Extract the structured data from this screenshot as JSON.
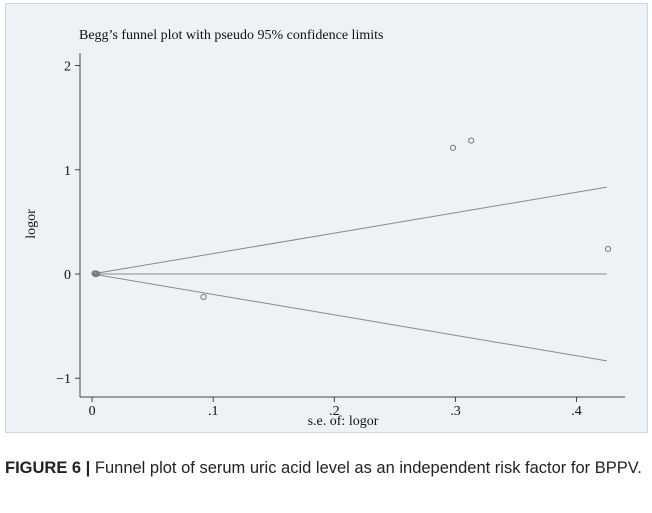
{
  "chart_data": {
    "type": "scatter",
    "title": "Begg’s funnel plot with pseudo 95% confidence limits",
    "xlabel": "s.e. of: logor",
    "ylabel": "logor",
    "xlim": [
      -0.01,
      0.44
    ],
    "ylim": [
      -1.18,
      2.12
    ],
    "x_ticks": [
      {
        "value": 0,
        "label": "0"
      },
      {
        "value": 0.1,
        "label": ".1"
      },
      {
        "value": 0.2,
        "label": ".2"
      },
      {
        "value": 0.3,
        "label": ".3"
      },
      {
        "value": 0.4,
        "label": ".4"
      }
    ],
    "y_ticks": [
      {
        "value": 2,
        "label": "2"
      },
      {
        "value": 1,
        "label": "1"
      },
      {
        "value": 0,
        "label": "0"
      },
      {
        "value": -1,
        "label": "−1"
      }
    ],
    "points": [
      {
        "x": 0.002,
        "y": 0.005
      },
      {
        "x": 0.003,
        "y": 0.002
      },
      {
        "x": 0.004,
        "y": 0.003
      },
      {
        "x": 0.003,
        "y": -0.002
      },
      {
        "x": 0.092,
        "y": -0.22
      },
      {
        "x": 0.298,
        "y": 1.21
      },
      {
        "x": 0.313,
        "y": 1.28
      },
      {
        "x": 0.426,
        "y": 0.24
      }
    ],
    "pooled_estimate": 0,
    "confidence_limits": {
      "z": 1.96,
      "x_range": [
        0,
        0.425
      ]
    },
    "grid": false,
    "colors": {
      "background": "#eef2f6",
      "axes": "#444444",
      "lines": "#888888",
      "markers": "#777777"
    }
  },
  "caption": {
    "label": "FIGURE 6 |",
    "text": " Funnel plot of serum uric acid level as an independent risk factor for BPPV."
  }
}
